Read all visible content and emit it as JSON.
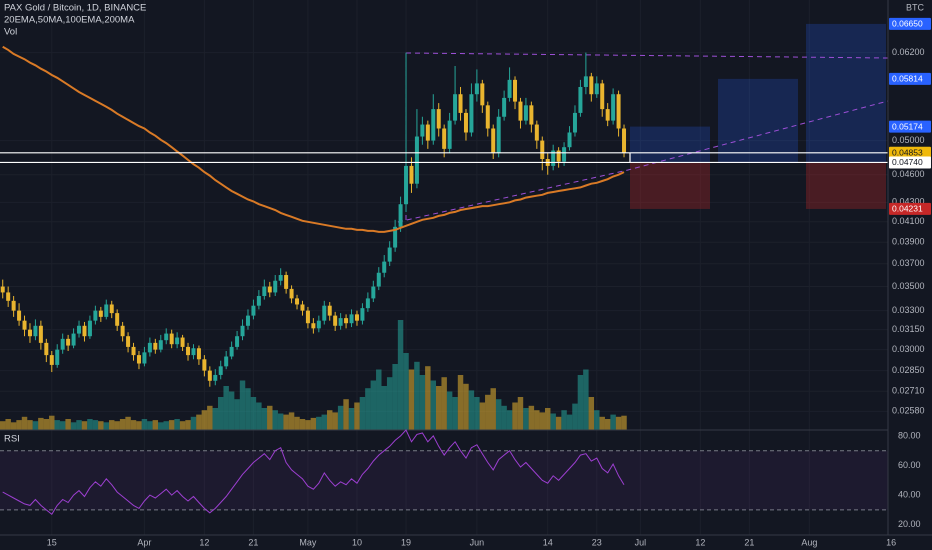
{
  "chart_data": {
    "type": "candlestick",
    "title": "PAX Gold / Bitcoin, 1D, BINANCE",
    "indicators": "20EMA,50MA,100EMA,200MA",
    "unit": "BTC",
    "log_scale": true,
    "grid": true,
    "up_color": "#26a69a",
    "down_color": "#e9b52f",
    "ylim": [
      0.02465,
      0.0705
    ],
    "yticks": [
      {
        "value": 0.062,
        "label": "0.06200"
      },
      {
        "value": 0.05,
        "label": "0.05000"
      },
      {
        "value": 0.046,
        "label": "0.04600"
      },
      {
        "value": 0.043,
        "label": "0.04300"
      },
      {
        "value": 0.041,
        "label": "0.04100"
      },
      {
        "value": 0.039,
        "label": "0.03900"
      },
      {
        "value": 0.037,
        "label": "0.03700"
      },
      {
        "value": 0.035,
        "label": "0.03500"
      },
      {
        "value": 0.033,
        "label": "0.03300"
      },
      {
        "value": 0.0315,
        "label": "0.03150"
      },
      {
        "value": 0.03,
        "label": "0.03000"
      },
      {
        "value": 0.0285,
        "label": "0.02850"
      },
      {
        "value": 0.0271,
        "label": "0.02710"
      },
      {
        "value": 0.0258,
        "label": "0.02580"
      }
    ],
    "categories": [
      null,
      null,
      null,
      null,
      null,
      null,
      null,
      null,
      null,
      "15",
      null,
      null,
      null,
      null,
      null,
      null,
      null,
      null,
      null,
      null,
      null,
      null,
      null,
      null,
      null,
      null,
      "Apr",
      null,
      null,
      null,
      null,
      null,
      null,
      null,
      null,
      null,
      null,
      "12",
      null,
      null,
      null,
      null,
      null,
      null,
      null,
      null,
      "21",
      null,
      null,
      null,
      null,
      null,
      null,
      null,
      null,
      null,
      "May",
      null,
      null,
      null,
      null,
      null,
      null,
      null,
      null,
      "10",
      null,
      null,
      null,
      null,
      null,
      null,
      null,
      null,
      "19",
      null,
      null,
      null,
      null,
      null,
      null,
      null,
      null,
      null,
      null,
      null,
      null,
      "Jun",
      null,
      null,
      null,
      null,
      null,
      null,
      null,
      null,
      null,
      null,
      null,
      null,
      "14",
      null,
      null,
      null,
      null,
      null,
      null,
      null,
      null,
      "23",
      null,
      null,
      null,
      null,
      null,
      null,
      null,
      "Jul",
      null,
      null,
      null,
      null,
      null,
      null,
      null,
      null,
      null,
      null,
      "12",
      null,
      null,
      null,
      null,
      null,
      null,
      null,
      null,
      "21",
      null,
      null,
      null,
      null,
      null,
      null,
      null,
      null,
      null,
      null,
      "Aug",
      null,
      null,
      null,
      null,
      null,
      null,
      null,
      null,
      null,
      null,
      null,
      null,
      null,
      null,
      "16"
    ],
    "open": [
      0.035,
      0.0345,
      0.0338,
      0.033,
      0.0322,
      0.0315,
      0.031,
      0.0318,
      0.0305,
      0.0296,
      0.0289,
      0.03,
      0.0308,
      0.0303,
      0.0312,
      0.0318,
      0.031,
      0.0322,
      0.033,
      0.0325,
      0.0335,
      0.0328,
      0.0318,
      0.031,
      0.0302,
      0.0296,
      0.029,
      0.0298,
      0.0305,
      0.03,
      0.0307,
      0.0312,
      0.0304,
      0.0309,
      0.0302,
      0.0296,
      0.0301,
      0.0293,
      0.0285,
      0.0278,
      0.0282,
      0.0288,
      0.0295,
      0.0302,
      0.031,
      0.0318,
      0.0326,
      0.0334,
      0.0342,
      0.035,
      0.0345,
      0.0355,
      0.036,
      0.0348,
      0.034,
      0.0335,
      0.033,
      0.032,
      0.0316,
      0.0322,
      0.0334,
      0.0326,
      0.0318,
      0.0324,
      0.032,
      0.0327,
      0.0322,
      0.0332,
      0.034,
      0.035,
      0.0362,
      0.0372,
      0.0385,
      0.0405,
      0.0428,
      0.047,
      0.045,
      0.0505,
      0.052,
      0.05,
      0.054,
      0.0515,
      0.049,
      0.0525,
      0.056,
      0.0535,
      0.051,
      0.056,
      0.0575,
      0.0545,
      0.0515,
      0.0485,
      0.053,
      0.0555,
      0.058,
      0.055,
      0.0525,
      0.0545,
      0.052,
      0.05,
      0.0478,
      0.047,
      0.0488,
      0.0475,
      0.0492,
      0.051,
      0.0535,
      0.057,
      0.0585,
      0.056,
      0.0575,
      0.054,
      0.0525,
      0.056,
      0.0515,
      null,
      null,
      null,
      null,
      null,
      null,
      null,
      null,
      null,
      null,
      null,
      null,
      null,
      null,
      null,
      null,
      null,
      null,
      null,
      null,
      null,
      null,
      null,
      null,
      null,
      null,
      null,
      null,
      null,
      null,
      null,
      null,
      null,
      null,
      null,
      null,
      null,
      null,
      null,
      null,
      null,
      null,
      null,
      null,
      null,
      null,
      null,
      null,
      null
    ],
    "high": [
      0.0356,
      0.035,
      0.0342,
      0.0336,
      0.0326,
      0.032,
      0.0323,
      0.0322,
      0.0308,
      0.0299,
      0.0304,
      0.0312,
      0.0311,
      0.0316,
      0.0322,
      0.0321,
      0.0326,
      0.0334,
      0.0333,
      0.0339,
      0.0338,
      0.0331,
      0.0321,
      0.0313,
      0.0305,
      0.0299,
      0.0302,
      0.0309,
      0.0308,
      0.0311,
      0.0316,
      0.0315,
      0.0313,
      0.0311,
      0.0305,
      0.0304,
      0.0303,
      0.0296,
      0.0288,
      0.0286,
      0.0292,
      0.0299,
      0.0306,
      0.0314,
      0.0323,
      0.0331,
      0.0339,
      0.0347,
      0.0356,
      0.0354,
      0.036,
      0.0366,
      0.0363,
      0.0351,
      0.0343,
      0.0338,
      0.0333,
      0.0324,
      0.0326,
      0.0338,
      0.0337,
      0.0329,
      0.0328,
      0.0327,
      0.0331,
      0.033,
      0.0336,
      0.0345,
      0.0355,
      0.0367,
      0.0378,
      0.0391,
      0.0412,
      0.0436,
      0.062,
      0.048,
      0.054,
      0.053,
      0.0525,
      0.056,
      0.0548,
      0.052,
      0.0535,
      0.06,
      0.057,
      0.054,
      0.0575,
      0.0595,
      0.058,
      0.055,
      0.052,
      0.054,
      0.0565,
      0.0598,
      0.0585,
      0.0555,
      0.0555,
      0.055,
      0.0525,
      0.0505,
      0.0485,
      0.0495,
      0.0492,
      0.0498,
      0.0518,
      0.0545,
      0.058,
      0.062,
      0.059,
      0.0585,
      0.058,
      0.0548,
      0.0568,
      0.0565,
      0.052,
      null,
      null,
      null,
      null,
      null,
      null,
      null,
      null,
      null,
      null,
      null,
      null,
      null,
      null,
      null,
      null,
      null,
      null,
      null,
      null,
      null,
      null,
      null,
      null,
      null,
      null,
      null,
      null,
      null,
      null,
      null,
      null,
      null,
      null,
      null,
      null,
      null,
      null,
      null,
      null,
      null,
      null,
      null,
      null,
      null,
      null,
      null,
      null,
      null
    ],
    "low": [
      0.034,
      0.0333,
      0.0325,
      0.0318,
      0.031,
      0.0305,
      0.0307,
      0.03,
      0.0291,
      0.0284,
      0.0287,
      0.0297,
      0.0299,
      0.0301,
      0.0309,
      0.0306,
      0.0308,
      0.0319,
      0.0321,
      0.0323,
      0.0324,
      0.0314,
      0.0306,
      0.0298,
      0.0292,
      0.0286,
      0.0288,
      0.0295,
      0.0297,
      0.0298,
      0.0304,
      0.0301,
      0.0301,
      0.0299,
      0.0292,
      0.0293,
      0.0289,
      0.0281,
      0.0274,
      0.0275,
      0.0279,
      0.0286,
      0.0293,
      0.03,
      0.0307,
      0.0315,
      0.0323,
      0.0331,
      0.0339,
      0.0341,
      0.0342,
      0.0351,
      0.0344,
      0.0336,
      0.0331,
      0.0326,
      0.0316,
      0.0312,
      0.0313,
      0.0319,
      0.0322,
      0.0314,
      0.0315,
      0.0316,
      0.0317,
      0.0318,
      0.0319,
      0.0329,
      0.0337,
      0.0347,
      0.0358,
      0.0368,
      0.0381,
      0.04,
      0.042,
      0.044,
      0.0445,
      0.0495,
      0.049,
      0.0495,
      0.0505,
      0.048,
      0.0485,
      0.052,
      0.0525,
      0.05,
      0.0505,
      0.055,
      0.0535,
      0.0505,
      0.0478,
      0.048,
      0.0525,
      0.055,
      0.054,
      0.0515,
      0.052,
      0.051,
      0.049,
      0.0465,
      0.046,
      0.0465,
      0.0468,
      0.047,
      0.0488,
      0.0505,
      0.053,
      0.056,
      0.055,
      0.0555,
      0.053,
      0.0518,
      0.052,
      0.0505,
      0.048,
      null,
      null,
      null,
      null,
      null,
      null,
      null,
      null,
      null,
      null,
      null,
      null,
      null,
      null,
      null,
      null,
      null,
      null,
      null,
      null,
      null,
      null,
      null,
      null,
      null,
      null,
      null,
      null,
      null,
      null,
      null,
      null,
      null,
      null,
      null,
      null,
      null,
      null,
      null,
      null,
      null,
      null,
      null,
      null,
      null,
      null,
      null,
      null,
      null
    ],
    "close": [
      0.0345,
      0.0338,
      0.033,
      0.0322,
      0.0315,
      0.031,
      0.0318,
      0.0305,
      0.0296,
      0.0289,
      0.03,
      0.0308,
      0.0303,
      0.0312,
      0.0318,
      0.031,
      0.0322,
      0.033,
      0.0325,
      0.0335,
      0.0328,
      0.0318,
      0.031,
      0.0302,
      0.0296,
      0.029,
      0.0298,
      0.0305,
      0.03,
      0.0307,
      0.0312,
      0.0304,
      0.0309,
      0.0302,
      0.0296,
      0.0301,
      0.0293,
      0.0285,
      0.0278,
      0.0282,
      0.0288,
      0.0295,
      0.0302,
      0.031,
      0.0318,
      0.0326,
      0.0334,
      0.0342,
      0.035,
      0.0345,
      0.0355,
      0.036,
      0.0348,
      0.034,
      0.0335,
      0.033,
      0.032,
      0.0316,
      0.0322,
      0.0334,
      0.0326,
      0.0318,
      0.0324,
      0.032,
      0.0327,
      0.0322,
      0.0332,
      0.034,
      0.035,
      0.0362,
      0.0372,
      0.0385,
      0.0405,
      0.0428,
      0.047,
      0.045,
      0.0505,
      0.052,
      0.05,
      0.054,
      0.0515,
      0.049,
      0.0525,
      0.056,
      0.0535,
      0.051,
      0.056,
      0.0575,
      0.0545,
      0.0515,
      0.0485,
      0.053,
      0.0555,
      0.058,
      0.055,
      0.0525,
      0.0545,
      0.052,
      0.05,
      0.0478,
      0.047,
      0.0488,
      0.0475,
      0.0492,
      0.051,
      0.0535,
      0.057,
      0.0585,
      0.056,
      0.0575,
      0.054,
      0.0525,
      0.056,
      0.0515,
      0.04853,
      null,
      null,
      null,
      null,
      null,
      null,
      null,
      null,
      null,
      null,
      null,
      null,
      null,
      null,
      null,
      null,
      null,
      null,
      null,
      null,
      null,
      null,
      null,
      null,
      null,
      null,
      null,
      null,
      null,
      null,
      null,
      null,
      null,
      null,
      null,
      null,
      null,
      null,
      null,
      null,
      null,
      null,
      null,
      null,
      null,
      null,
      null,
      null,
      null
    ],
    "ma": {
      "color": "#d97a26",
      "values": [
        0.0629,
        0.0624,
        0.0618,
        0.0614,
        0.061,
        0.0605,
        0.0601,
        0.0596,
        0.0592,
        0.0587,
        0.0583,
        0.0578,
        0.0573,
        0.0568,
        0.0563,
        0.0559,
        0.0555,
        0.0551,
        0.0547,
        0.0543,
        0.0539,
        0.0534,
        0.053,
        0.0526,
        0.0522,
        0.0518,
        0.0515,
        0.051,
        0.0506,
        0.0501,
        0.0497,
        0.0492,
        0.0487,
        0.0482,
        0.0477,
        0.0472,
        0.0468,
        0.0463,
        0.0459,
        0.0454,
        0.045,
        0.0446,
        0.0442,
        0.0439,
        0.0436,
        0.0433,
        0.0431,
        0.0428,
        0.0426,
        0.0424,
        0.0422,
        0.0419,
        0.0417,
        0.0415,
        0.0413,
        0.0411,
        0.041,
        0.0409,
        0.0408,
        0.0407,
        0.0406,
        0.0405,
        0.0404,
        0.0403,
        0.0403,
        0.0402,
        0.0402,
        0.0401,
        0.0401,
        0.04,
        0.04,
        0.0401,
        0.0402,
        0.0404,
        0.0406,
        0.0408,
        0.041,
        0.0412,
        0.0413,
        0.0414,
        0.0416,
        0.0417,
        0.0419,
        0.042,
        0.0422,
        0.0423,
        0.0424,
        0.0425,
        0.0426,
        0.0426,
        0.0427,
        0.0428,
        0.0429,
        0.043,
        0.0432,
        0.0433,
        0.0435,
        0.0436,
        0.0437,
        0.0438,
        0.044,
        0.0441,
        0.0442,
        0.0443,
        0.0444,
        0.0445,
        0.0446,
        0.0448,
        0.045,
        0.0451,
        0.0453,
        0.0455,
        0.0458,
        0.046,
        0.0463,
        null,
        null,
        null,
        null,
        null,
        null,
        null,
        null,
        null,
        null,
        null,
        null,
        null,
        null,
        null,
        null,
        null,
        null,
        null,
        null,
        null,
        null,
        null,
        null,
        null,
        null,
        null,
        null,
        null,
        null,
        null,
        null,
        null,
        null,
        null,
        null,
        null,
        null,
        null,
        null,
        null,
        null,
        null,
        null,
        null,
        null,
        null,
        null,
        null
      ]
    },
    "volume": {
      "name": "Vol",
      "values": [
        8,
        10,
        7,
        9,
        12,
        9,
        8,
        11,
        10,
        13,
        9,
        8,
        10,
        7,
        9,
        8,
        10,
        9,
        8,
        7,
        9,
        8,
        10,
        12,
        9,
        8,
        10,
        8,
        9,
        7,
        8,
        9,
        10,
        8,
        9,
        12,
        14,
        18,
        22,
        20,
        30,
        40,
        35,
        28,
        45,
        38,
        30,
        25,
        20,
        22,
        18,
        15,
        14,
        16,
        12,
        10,
        9,
        11,
        12,
        14,
        18,
        16,
        22,
        28,
        20,
        25,
        30,
        38,
        45,
        55,
        40,
        48,
        60,
        100,
        70,
        55,
        62,
        50,
        58,
        45,
        40,
        48,
        35,
        30,
        50,
        42,
        36,
        30,
        25,
        32,
        38,
        28,
        22,
        18,
        25,
        30,
        20,
        22,
        18,
        16,
        20,
        15,
        12,
        18,
        14,
        24,
        50,
        55,
        30,
        18,
        12,
        10,
        14,
        12,
        13,
        null,
        null,
        null,
        null,
        null,
        null,
        null,
        null,
        null,
        null,
        null,
        null,
        null,
        null,
        null,
        null,
        null,
        null,
        null,
        null,
        null,
        null,
        null,
        null,
        null,
        null,
        null,
        null,
        null,
        null,
        null,
        null,
        null,
        null,
        null,
        null,
        null,
        null,
        null,
        null,
        null,
        null,
        null,
        null,
        null,
        null,
        null,
        null,
        null
      ]
    },
    "current": {
      "value": 0.04853,
      "label": "0.04853",
      "color": "#f0b90b"
    },
    "entry": {
      "value": 0.0474,
      "label": "0.04740",
      "color": "#ffffff"
    },
    "stop": {
      "value": 0.04231,
      "label": "0.04231",
      "color": "#c62828"
    },
    "targets": [
      {
        "value": 0.05174,
        "label": "0.05174"
      },
      {
        "value": 0.05814,
        "label": "0.05814"
      },
      {
        "value": 0.0665,
        "label": "0.06650"
      }
    ],
    "target_color": "#2962ff",
    "rsi": {
      "name": "RSI",
      "color": "#9c3fd0",
      "ylim": [
        13,
        84
      ],
      "yticks": [
        {
          "value": 80,
          "label": "80.00"
        },
        {
          "value": 60,
          "label": "60.00"
        },
        {
          "value": 40,
          "label": "40.00"
        },
        {
          "value": 20,
          "label": "20.00"
        }
      ],
      "bands": [
        70,
        30
      ],
      "values": [
        42,
        40,
        38,
        36,
        34,
        33,
        37,
        33,
        30,
        27,
        33,
        37,
        35,
        40,
        43,
        39,
        45,
        49,
        46,
        51,
        47,
        42,
        39,
        36,
        33,
        31,
        36,
        40,
        38,
        41,
        44,
        40,
        43,
        39,
        36,
        39,
        35,
        31,
        28,
        31,
        35,
        39,
        44,
        49,
        54,
        58,
        62,
        65,
        68,
        64,
        70,
        72,
        62,
        57,
        54,
        51,
        46,
        44,
        48,
        55,
        50,
        46,
        49,
        47,
        51,
        48,
        54,
        58,
        63,
        67,
        70,
        73,
        77,
        80,
        84,
        76,
        81,
        82,
        76,
        80,
        73,
        67,
        72,
        76,
        70,
        65,
        72,
        74,
        68,
        62,
        57,
        64,
        67,
        70,
        64,
        59,
        62,
        58,
        54,
        50,
        48,
        53,
        50,
        54,
        58,
        62,
        67,
        68,
        63,
        65,
        58,
        55,
        61,
        53,
        47,
        null,
        null,
        null,
        null,
        null,
        null,
        null,
        null,
        null,
        null,
        null,
        null,
        null,
        null,
        null,
        null,
        null,
        null,
        null,
        null,
        null,
        null,
        null,
        null,
        null,
        null,
        null,
        null,
        null,
        null,
        null,
        null,
        null,
        null,
        null,
        null,
        null,
        null,
        null,
        null,
        null,
        null,
        null,
        null,
        null,
        null,
        null,
        null,
        null
      ]
    }
  }
}
